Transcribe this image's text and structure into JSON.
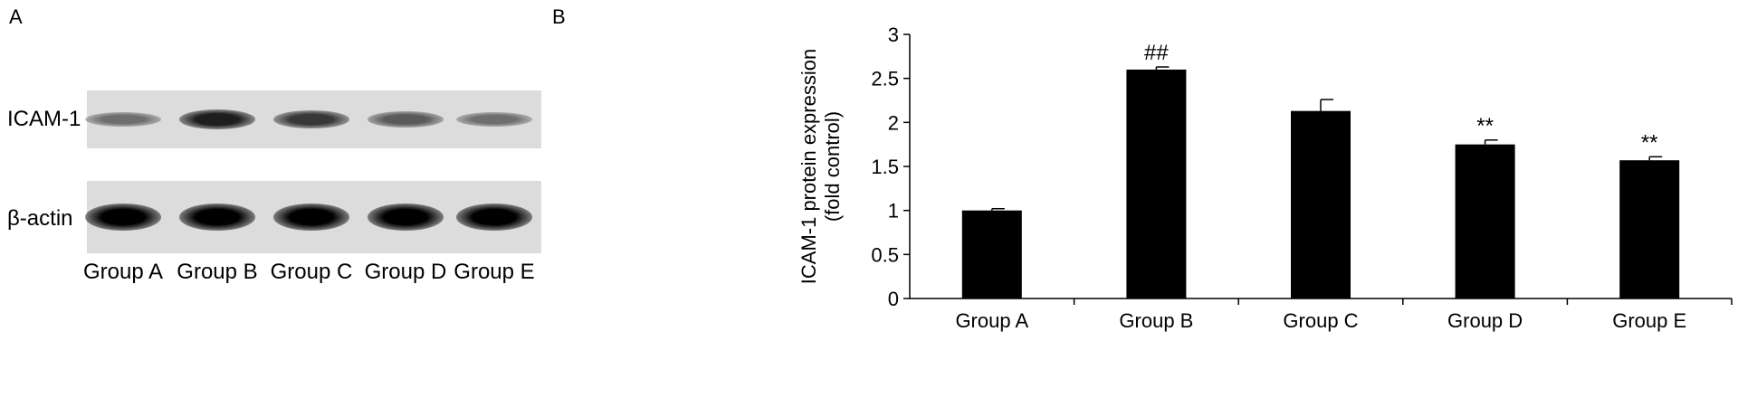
{
  "panel_a": {
    "label": "A",
    "rows": [
      {
        "label": "ICAM-1",
        "intensity": [
          0.45,
          0.85,
          0.72,
          0.55,
          0.45
        ]
      },
      {
        "label": "β-actin",
        "intensity": [
          1.0,
          1.0,
          1.0,
          1.0,
          1.0
        ]
      }
    ],
    "lanes": [
      "Group A",
      "Group B",
      "Group C",
      "Group D",
      "Group E"
    ]
  },
  "panel_b": {
    "label": "B"
  },
  "chart_data": {
    "type": "bar",
    "categories": [
      "Group A",
      "Group B",
      "Group C",
      "Group D",
      "Group E"
    ],
    "values": [
      1.0,
      2.6,
      2.13,
      1.75,
      1.57
    ],
    "errors": [
      0.02,
      0.03,
      0.13,
      0.05,
      0.04
    ],
    "annotations": [
      "",
      "##",
      "",
      "**",
      "**"
    ],
    "ylabel_lines": [
      "ICAM-1 protein expression",
      "(fold control)"
    ],
    "xlabel": "",
    "ylim": [
      0,
      3
    ],
    "yticks": [
      0,
      0.5,
      1,
      1.5,
      2,
      2.5,
      3
    ],
    "ytick_labels": [
      "0",
      "0.5",
      "1",
      "1.5",
      "2",
      "2.5",
      "3"
    ],
    "bar_color": "#000000",
    "grid": false
  }
}
